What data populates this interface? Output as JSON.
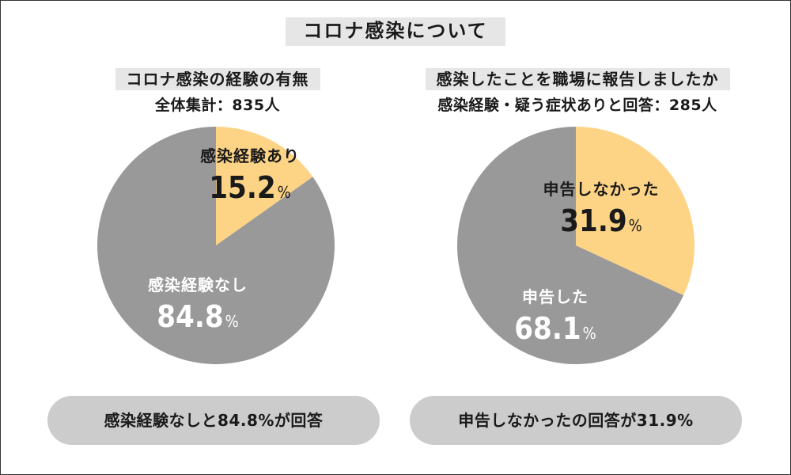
{
  "title": "コロナ感染について",
  "chart_data": [
    {
      "type": "pie",
      "title": "コロナ感染の経験の有無",
      "subtitle": "全体集計：835人",
      "slices": [
        {
          "label": "感染経験あり",
          "value": 15.2,
          "display": "15.2",
          "unit": "%",
          "color": "#fdd385",
          "text_color": "#1a1a1a"
        },
        {
          "label": "感染経験なし",
          "value": 84.8,
          "display": "84.8",
          "unit": "%",
          "color": "#999999",
          "text_color": "#ffffff"
        }
      ],
      "summary": "感染経験なしと84.8%が回答"
    },
    {
      "type": "pie",
      "title": "感染したことを職場に報告しましたか",
      "subtitle": "感染経験・疑う症状ありと回答：285人",
      "slices": [
        {
          "label": "申告しなかった",
          "value": 31.9,
          "display": "31.9",
          "unit": "%",
          "color": "#fdd385",
          "text_color": "#1a1a1a"
        },
        {
          "label": "申告した",
          "value": 68.1,
          "display": "68.1",
          "unit": "%",
          "color": "#999999",
          "text_color": "#ffffff"
        }
      ],
      "summary": "申告しなかったの回答が31.9%"
    }
  ]
}
